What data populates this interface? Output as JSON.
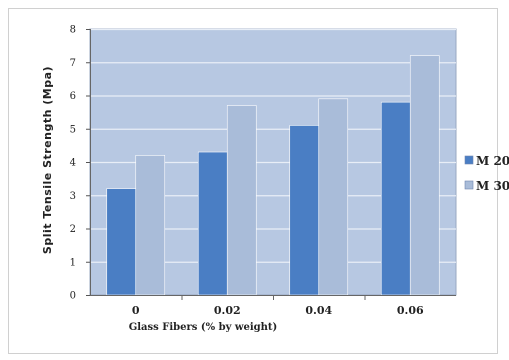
{
  "chart_data": {
    "type": "bar",
    "categories": [
      "0",
      "0.02",
      "0.04",
      "0.06"
    ],
    "series": [
      {
        "name": "M 20",
        "values": [
          3.2,
          4.3,
          5.1,
          5.8
        ],
        "color": "#4a7ec4"
      },
      {
        "name": "M 30",
        "values": [
          4.2,
          5.7,
          5.9,
          7.2
        ],
        "color": "#a9bcd9"
      }
    ],
    "title": "",
    "xlabel": "Glass Fibers (% by weight)",
    "ylabel": "Split Tensile Strength (Mpa)",
    "ylim": [
      0,
      8
    ],
    "yticks": [
      "0",
      "1",
      "2",
      "3",
      "4",
      "5",
      "6",
      "7",
      "8"
    ],
    "grid": true,
    "legend_position": "right",
    "plot_background": "#b7c8e2"
  }
}
